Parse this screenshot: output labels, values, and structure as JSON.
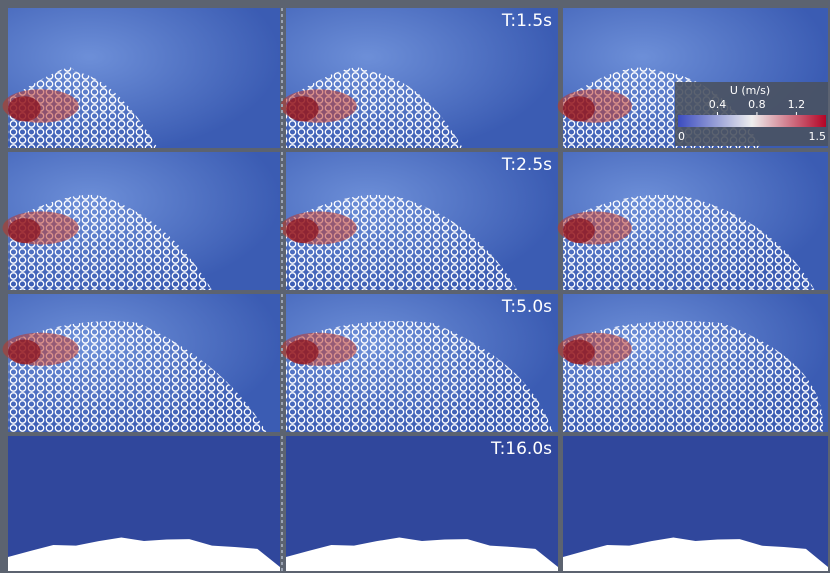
{
  "rows": [
    {
      "time_label": "T:1.5s"
    },
    {
      "time_label": "T:2.5s"
    },
    {
      "time_label": "T:5.0s"
    },
    {
      "time_label": "T:16.0s"
    }
  ],
  "colorbar": {
    "title": "U (m/s)",
    "min": 0,
    "max": 1.5,
    "ticks": [
      0.4,
      0.8,
      1.2
    ]
  }
}
